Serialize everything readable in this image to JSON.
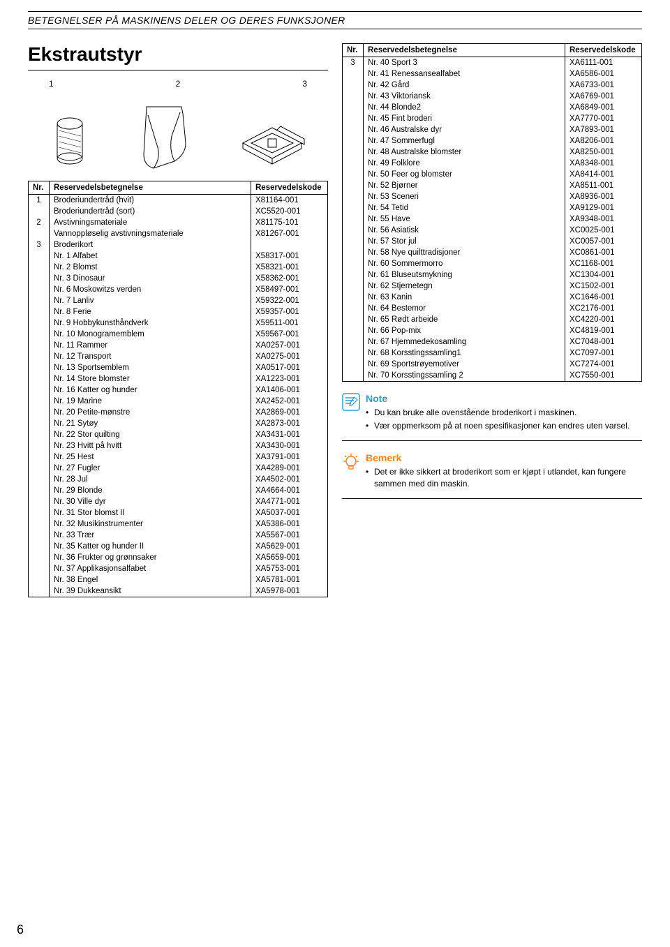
{
  "header": "BETEGNELSER PÅ MASKINENS DELER OG DERES FUNKSJONER",
  "title": "Ekstrautstyr",
  "illus_labels": [
    "1",
    "2",
    "3"
  ],
  "pageNumber": "6",
  "leftTable": {
    "headers": {
      "nr": "Nr.",
      "name": "Reservedelsbetegnelse",
      "code": "Reservedelskode"
    },
    "rows": [
      {
        "nr": "1",
        "name": "Broderiundertråd (hvit)",
        "code": "X81164-001"
      },
      {
        "nr": "",
        "name": "Broderiundertråd (sort)",
        "code": "XC5520-001"
      },
      {
        "nr": "2",
        "name": "Avstivningsmateriale",
        "code": "X81175-101"
      },
      {
        "nr": "",
        "name": "Vannoppløselig avstivningsmateriale",
        "code": "X81267-001"
      },
      {
        "nr": "3",
        "name": "Broderikort",
        "code": ""
      },
      {
        "nr": "",
        "name": "Nr. 1 Alfabet",
        "code": "X58317-001"
      },
      {
        "nr": "",
        "name": "Nr. 2 Blomst",
        "code": "X58321-001"
      },
      {
        "nr": "",
        "name": "Nr. 3 Dinosaur",
        "code": "X58362-001"
      },
      {
        "nr": "",
        "name": "Nr. 6 Moskowitzs verden",
        "code": "X58497-001"
      },
      {
        "nr": "",
        "name": "Nr. 7 Lanliv",
        "code": "X59322-001"
      },
      {
        "nr": "",
        "name": "Nr. 8 Ferie",
        "code": "X59357-001"
      },
      {
        "nr": "",
        "name": "Nr. 9 Hobbykunsthåndverk",
        "code": "X59511-001"
      },
      {
        "nr": "",
        "name": "Nr. 10 Monogramemblem",
        "code": "X59567-001"
      },
      {
        "nr": "",
        "name": "Nr. 11 Rammer",
        "code": "XA0257-001"
      },
      {
        "nr": "",
        "name": "Nr. 12 Transport",
        "code": "XA0275-001"
      },
      {
        "nr": "",
        "name": "Nr. 13 Sportsemblem",
        "code": "XA0517-001"
      },
      {
        "nr": "",
        "name": "Nr. 14 Store blomster",
        "code": "XA1223-001"
      },
      {
        "nr": "",
        "name": "Nr. 16 Katter og hunder",
        "code": "XA1406-001"
      },
      {
        "nr": "",
        "name": "Nr. 19 Marine",
        "code": "XA2452-001"
      },
      {
        "nr": "",
        "name": "Nr. 20 Petite-mønstre",
        "code": "XA2869-001"
      },
      {
        "nr": "",
        "name": "Nr. 21 Sytøy",
        "code": "XA2873-001"
      },
      {
        "nr": "",
        "name": "Nr. 22 Stor quilting",
        "code": "XA3431-001"
      },
      {
        "nr": "",
        "name": "Nr. 23 Hvitt på hvitt",
        "code": "XA3430-001"
      },
      {
        "nr": "",
        "name": "Nr. 25 Hest",
        "code": "XA3791-001"
      },
      {
        "nr": "",
        "name": "Nr. 27 Fugler",
        "code": "XA4289-001"
      },
      {
        "nr": "",
        "name": "Nr. 28 Jul",
        "code": "XA4502-001"
      },
      {
        "nr": "",
        "name": "Nr. 29 Blonde",
        "code": "XA4664-001"
      },
      {
        "nr": "",
        "name": "Nr. 30 Ville dyr",
        "code": "XA4771-001"
      },
      {
        "nr": "",
        "name": "Nr. 31 Stor blomst II",
        "code": "XA5037-001"
      },
      {
        "nr": "",
        "name": "Nr. 32 Musikinstrumenter",
        "code": "XA5386-001"
      },
      {
        "nr": "",
        "name": "Nr. 33 Trær",
        "code": "XA5567-001"
      },
      {
        "nr": "",
        "name": "Nr. 35 Katter og hunder II",
        "code": "XA5629-001"
      },
      {
        "nr": "",
        "name": "Nr. 36 Frukter og grønnsaker",
        "code": "XA5659-001"
      },
      {
        "nr": "",
        "name": "Nr. 37 Applikasjonsalfabet",
        "code": "XA5753-001"
      },
      {
        "nr": "",
        "name": "Nr. 38 Engel",
        "code": "XA5781-001"
      },
      {
        "nr": "",
        "name": "Nr. 39 Dukkeansikt",
        "code": "XA5978-001"
      }
    ]
  },
  "rightTable": {
    "headers": {
      "nr": "Nr.",
      "name": "Reservedelsbetegnelse",
      "code": "Reservedelskode"
    },
    "rows": [
      {
        "nr": "3",
        "name": "Nr. 40 Sport 3",
        "code": "XA6111-001"
      },
      {
        "nr": "",
        "name": "Nr. 41 Renessansealfabet",
        "code": "XA6586-001"
      },
      {
        "nr": "",
        "name": "Nr. 42 Gård",
        "code": "XA6733-001"
      },
      {
        "nr": "",
        "name": "Nr. 43 Viktoriansk",
        "code": "XA6769-001"
      },
      {
        "nr": "",
        "name": "Nr. 44 Blonde2",
        "code": "XA6849-001"
      },
      {
        "nr": "",
        "name": "Nr. 45 Fint broderi",
        "code": "XA7770-001"
      },
      {
        "nr": "",
        "name": "Nr. 46 Australske dyr",
        "code": "XA7893-001"
      },
      {
        "nr": "",
        "name": "Nr. 47 Sommerfugl",
        "code": "XA8206-001"
      },
      {
        "nr": "",
        "name": "Nr. 48 Australske blomster",
        "code": "XA8250-001"
      },
      {
        "nr": "",
        "name": "Nr. 49 Folklore",
        "code": "XA8348-001"
      },
      {
        "nr": "",
        "name": "Nr. 50 Feer og blomster",
        "code": "XA8414-001"
      },
      {
        "nr": "",
        "name": "Nr. 52 Bjørner",
        "code": "XA8511-001"
      },
      {
        "nr": "",
        "name": "Nr. 53 Sceneri",
        "code": "XA8936-001"
      },
      {
        "nr": "",
        "name": "Nr. 54 Tetid",
        "code": "XA9129-001"
      },
      {
        "nr": "",
        "name": "Nr. 55 Have",
        "code": "XA9348-001"
      },
      {
        "nr": "",
        "name": "Nr. 56 Asiatisk",
        "code": "XC0025-001"
      },
      {
        "nr": "",
        "name": "Nr. 57 Stor jul",
        "code": "XC0057-001"
      },
      {
        "nr": "",
        "name": "Nr. 58 Nye quilttradisjoner",
        "code": "XC0861-001"
      },
      {
        "nr": "",
        "name": "Nr. 60 Sommermorro",
        "code": "XC1168-001"
      },
      {
        "nr": "",
        "name": "Nr. 61 Bluseutsmykning",
        "code": "XC1304-001"
      },
      {
        "nr": "",
        "name": "Nr. 62 Stjernetegn",
        "code": "XC1502-001"
      },
      {
        "nr": "",
        "name": "Nr. 63 Kanin",
        "code": "XC1646-001"
      },
      {
        "nr": "",
        "name": "Nr. 64 Bestemor",
        "code": "XC2176-001"
      },
      {
        "nr": "",
        "name": "Nr. 65 Rødt arbeide",
        "code": "XC4220-001"
      },
      {
        "nr": "",
        "name": "Nr. 66 Pop-mix",
        "code": "XC4819-001"
      },
      {
        "nr": "",
        "name": "Nr. 67 Hjemmedekosamling",
        "code": "XC7048-001"
      },
      {
        "nr": "",
        "name": "Nr. 68 Korsstingssamling1",
        "code": "XC7097-001"
      },
      {
        "nr": "",
        "name": "Nr. 69 Sportstrøyemotiver",
        "code": "XC7274-001"
      },
      {
        "nr": "",
        "name": "Nr. 70 Korsstingssamling 2",
        "code": "XC7550-001"
      }
    ]
  },
  "note": {
    "title": "Note",
    "items": [
      "Du kan bruke alle ovenstående broderikort i maskinen.",
      "Vær oppmerksom på at noen spesifikasjoner kan endres uten varsel."
    ]
  },
  "bemerk": {
    "title": "Bemerk",
    "items": [
      "Det er ikke sikkert at broderikort som er kjøpt i utlandet, kan fungere sammen med din maskin."
    ]
  },
  "colors": {
    "noteBlue": "#27a0d4",
    "bemerkOrange": "#f58220"
  }
}
